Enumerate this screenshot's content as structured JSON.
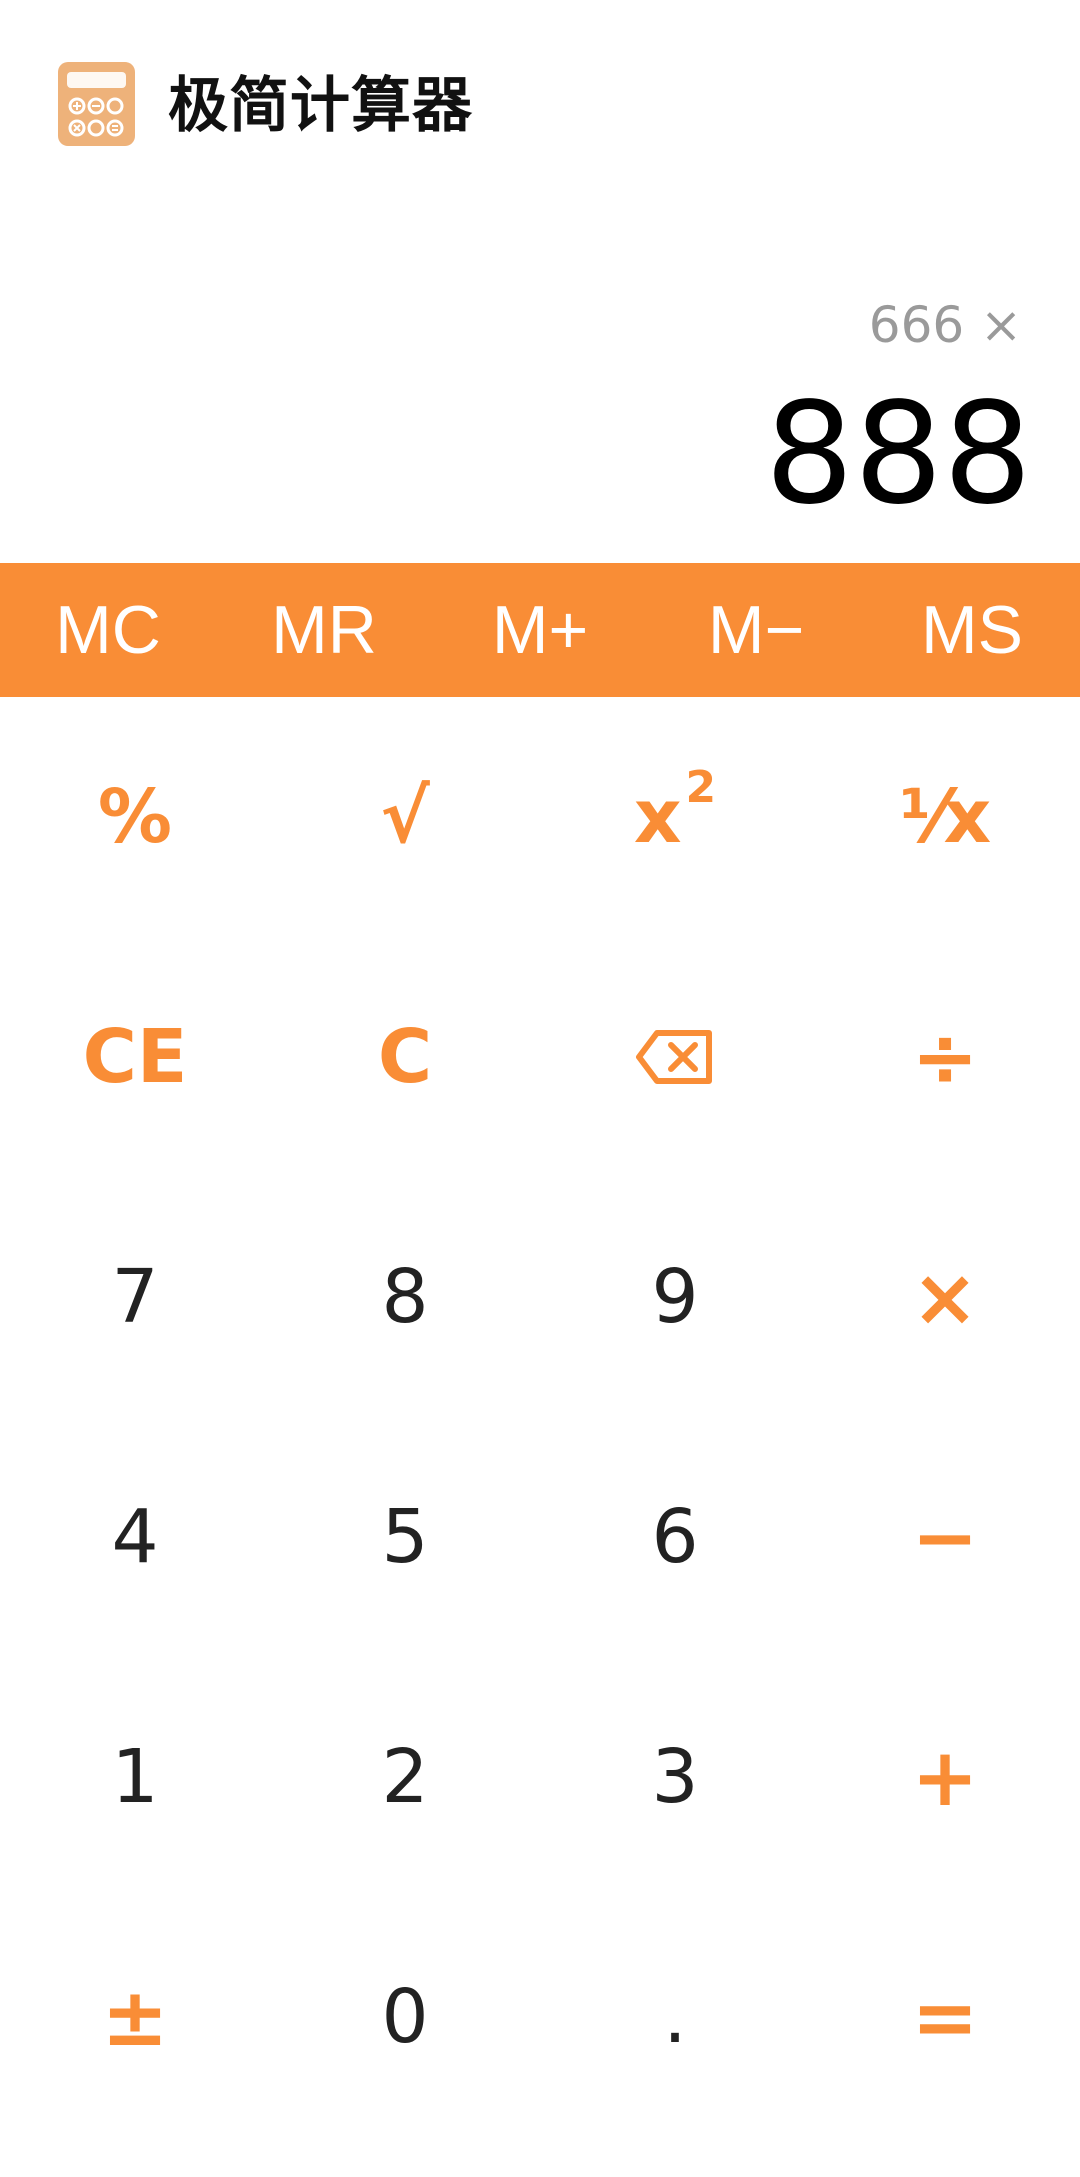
{
  "header": {
    "title": "极简计算器",
    "icon": "calculator-icon",
    "icon_color": "#eeb27a"
  },
  "display": {
    "expression": "666 ×",
    "result": "888"
  },
  "memory": [
    {
      "label": "MC",
      "name": "memory-clear-button"
    },
    {
      "label": "MR",
      "name": "memory-recall-button"
    },
    {
      "label": "M+",
      "name": "memory-add-button"
    },
    {
      "label": "M−",
      "name": "memory-subtract-button"
    },
    {
      "label": "MS",
      "name": "memory-store-button"
    }
  ],
  "keys": {
    "percent": "%",
    "sqrt": "√",
    "square_base": "x",
    "square_exp": "2",
    "reciprocal": "¹⁄x",
    "ce": "CE",
    "c": "C",
    "backspace": "backspace-icon",
    "divide": "÷",
    "seven": "7",
    "eight": "8",
    "nine": "9",
    "multiply": "×",
    "four": "4",
    "five": "5",
    "six": "6",
    "minus": "−",
    "one": "1",
    "two": "2",
    "three": "3",
    "plus": "+",
    "plusminus": "±",
    "zero": "0",
    "dot": ".",
    "equals": "="
  },
  "colors": {
    "accent": "#f98d36",
    "number_text": "#222222",
    "expression_text": "#9a9a9a"
  }
}
